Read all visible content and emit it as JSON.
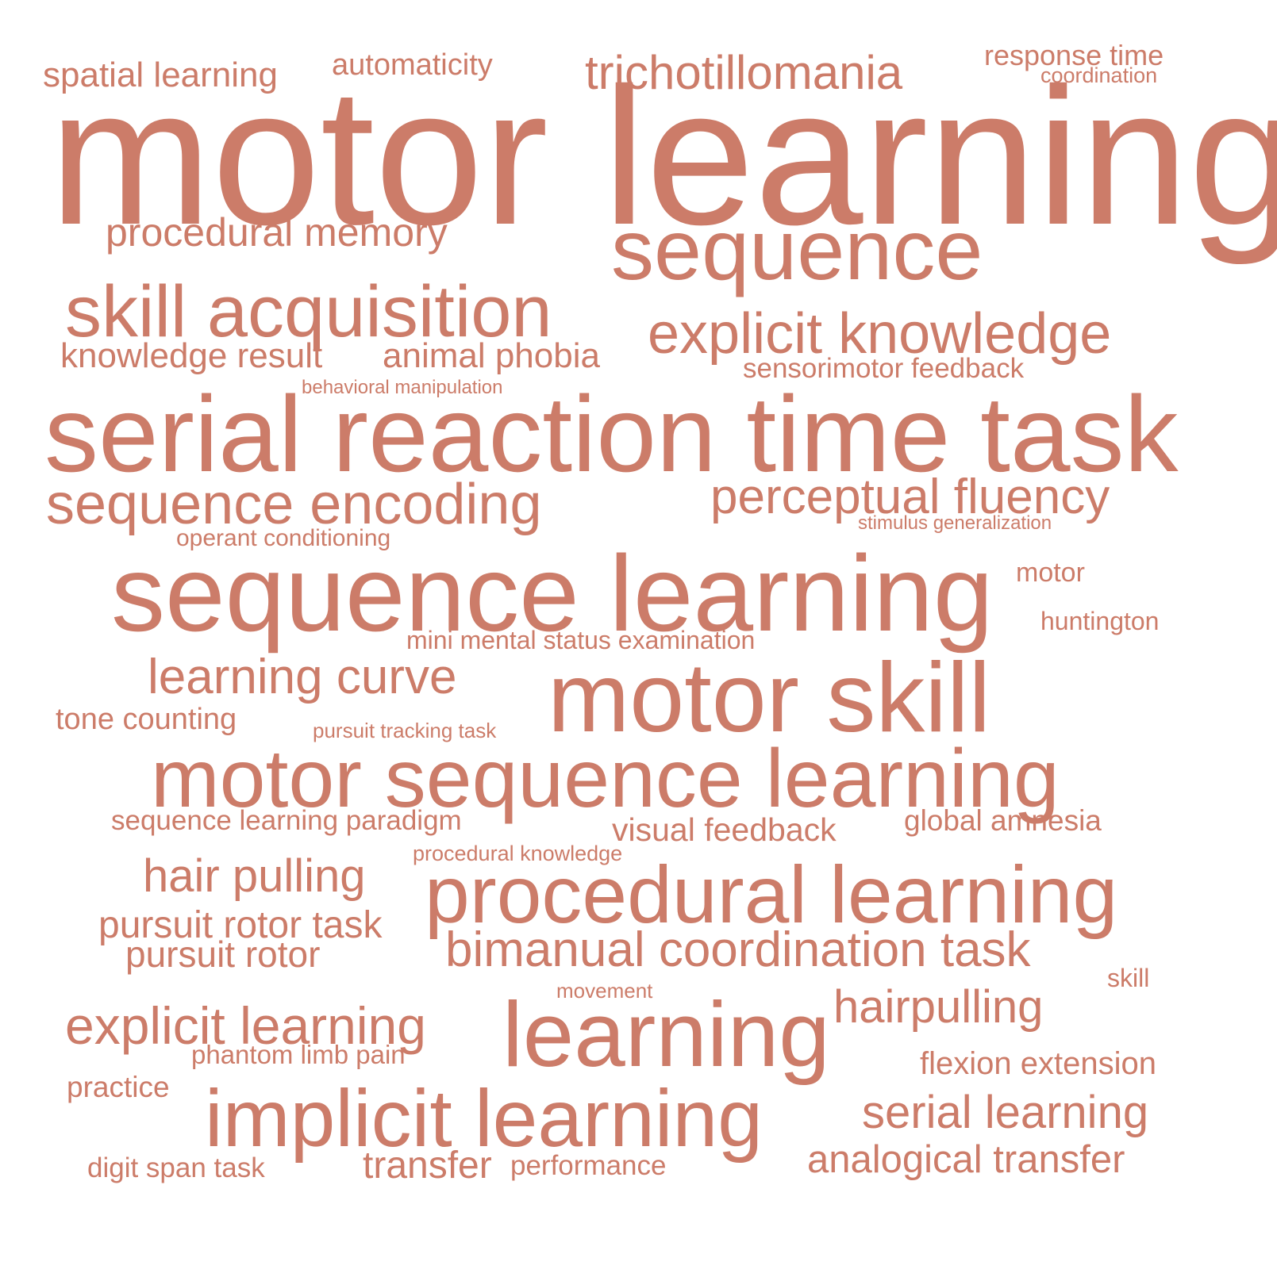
{
  "cloud": {
    "color": "#cc7c69",
    "words": [
      {
        "id": "motor-learning",
        "text": "motor learning"
      },
      {
        "id": "serial-reaction-time-task",
        "text": "serial reaction time task"
      },
      {
        "id": "sequence-learning",
        "text": "sequence learning"
      },
      {
        "id": "motor-sequence-learning",
        "text": "motor sequence learning"
      },
      {
        "id": "motor-skill",
        "text": "motor skill"
      },
      {
        "id": "procedural-learning",
        "text": "procedural learning"
      },
      {
        "id": "implicit-learning",
        "text": "implicit learning"
      },
      {
        "id": "sequence",
        "text": "sequence"
      },
      {
        "id": "learning",
        "text": "learning"
      },
      {
        "id": "skill-acquisition",
        "text": "skill acquisition"
      },
      {
        "id": "explicit-knowledge",
        "text": "explicit knowledge"
      },
      {
        "id": "sequence-encoding",
        "text": "sequence encoding"
      },
      {
        "id": "perceptual-fluency",
        "text": "perceptual fluency"
      },
      {
        "id": "explicit-learning",
        "text": "explicit learning"
      },
      {
        "id": "bimanual-coordination-task",
        "text": "bimanual coordination task"
      },
      {
        "id": "learning-curve",
        "text": "learning curve"
      },
      {
        "id": "trichotillomania",
        "text": "trichotillomania"
      },
      {
        "id": "serial-learning",
        "text": "serial learning"
      },
      {
        "id": "hair-pulling",
        "text": "hair pulling"
      },
      {
        "id": "hairpulling",
        "text": "hairpulling"
      },
      {
        "id": "procedural-memory",
        "text": "procedural memory"
      },
      {
        "id": "pursuit-rotor-task",
        "text": "pursuit rotor task"
      },
      {
        "id": "analogical-transfer",
        "text": "analogical transfer"
      },
      {
        "id": "transfer",
        "text": "transfer"
      },
      {
        "id": "pursuit-rotor",
        "text": "pursuit rotor"
      },
      {
        "id": "knowledge-result",
        "text": "knowledge result"
      },
      {
        "id": "animal-phobia",
        "text": "animal phobia"
      },
      {
        "id": "spatial-learning",
        "text": "spatial learning"
      },
      {
        "id": "visual-feedback",
        "text": "visual feedback"
      },
      {
        "id": "flexion-extension",
        "text": "flexion extension"
      },
      {
        "id": "automaticity",
        "text": "automaticity"
      },
      {
        "id": "response-time",
        "text": "response time"
      },
      {
        "id": "sensorimotor-feedback",
        "text": "sensorimotor feedback"
      },
      {
        "id": "global-amnesia",
        "text": "global amnesia"
      },
      {
        "id": "tone-counting",
        "text": "tone counting"
      },
      {
        "id": "sequence-learning-paradigm",
        "text": "sequence learning paradigm"
      },
      {
        "id": "practice",
        "text": "practice"
      },
      {
        "id": "digit-span-task",
        "text": "digit span task"
      },
      {
        "id": "performance",
        "text": "performance"
      },
      {
        "id": "mini-mental-status-examination",
        "text": "mini mental status examination"
      },
      {
        "id": "phantom-limb-pain",
        "text": "phantom limb pain"
      },
      {
        "id": "huntington",
        "text": "huntington"
      },
      {
        "id": "motor",
        "text": "motor"
      },
      {
        "id": "skill",
        "text": "skill"
      },
      {
        "id": "operant-conditioning",
        "text": "operant conditioning"
      },
      {
        "id": "coordination",
        "text": "coordination"
      },
      {
        "id": "procedural-knowledge",
        "text": "procedural knowledge"
      },
      {
        "id": "pursuit-tracking-task",
        "text": "pursuit tracking task"
      },
      {
        "id": "behavioral-manipulation",
        "text": "behavioral manipulation"
      },
      {
        "id": "stimulus-generalization",
        "text": "stimulus generalization"
      },
      {
        "id": "movement",
        "text": "movement"
      }
    ]
  }
}
